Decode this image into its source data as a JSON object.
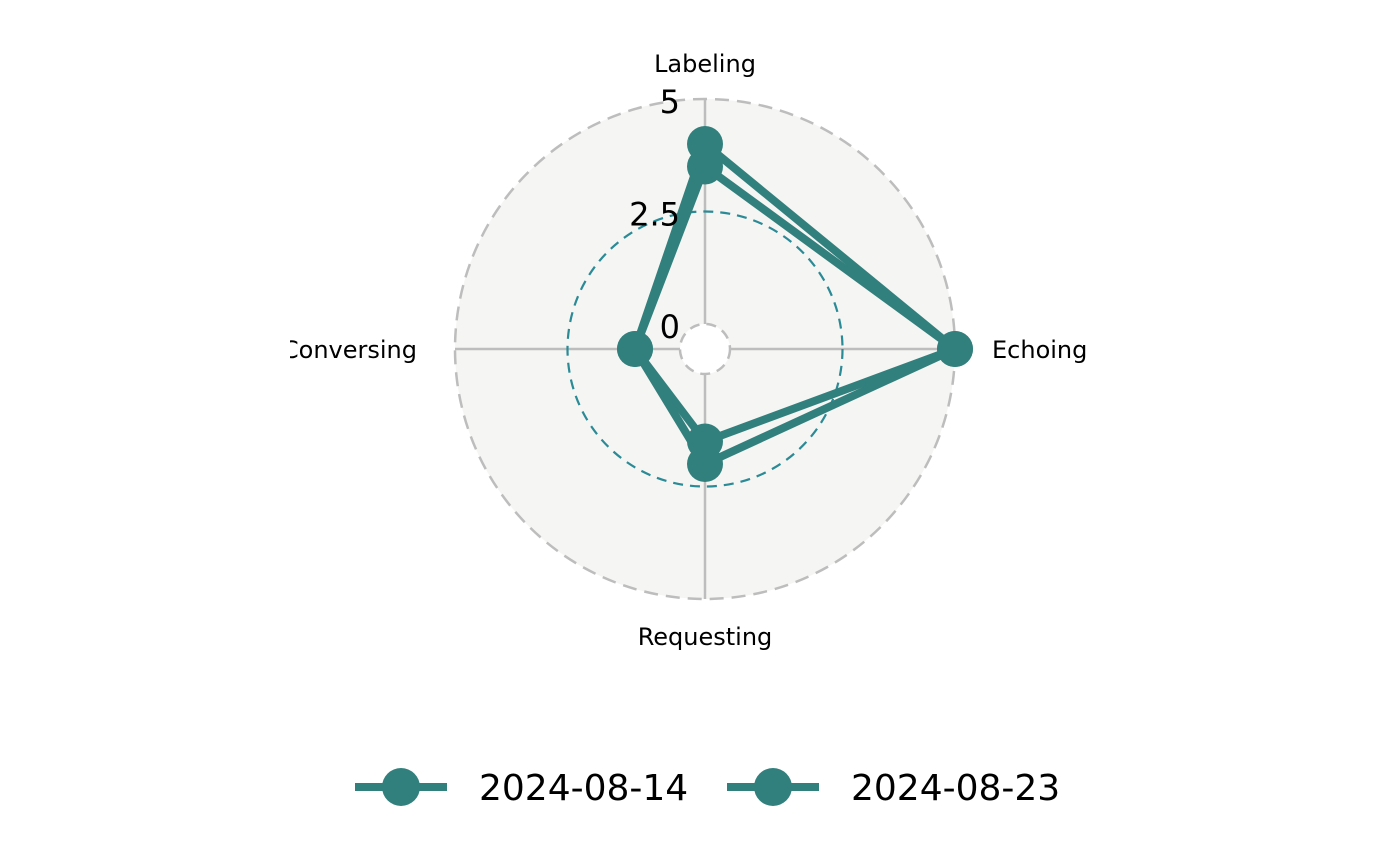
{
  "chart_data": {
    "type": "radar",
    "axes": [
      "Labeling",
      "Echoing",
      "Requesting",
      "Conversing"
    ],
    "rlim": [
      -0.5,
      5
    ],
    "ticks": [
      {
        "value": 0,
        "label": "0"
      },
      {
        "value": 2.5,
        "label": "2.5"
      },
      {
        "value": 5,
        "label": "5"
      }
    ],
    "series": [
      {
        "name": "2024-08-14",
        "values": [
          4,
          5,
          2,
          1
        ],
        "color": "#32807d"
      },
      {
        "name": "2024-08-23",
        "values": [
          3.5,
          5,
          1.5,
          1
        ],
        "color": "#32807d"
      }
    ],
    "colors": {
      "panel_fill": "#f5f5f3",
      "outer_grid": "#bdbdbd",
      "mid_grid": "#2a8a96",
      "series": "#32807d"
    },
    "legend_position": "bottom"
  }
}
